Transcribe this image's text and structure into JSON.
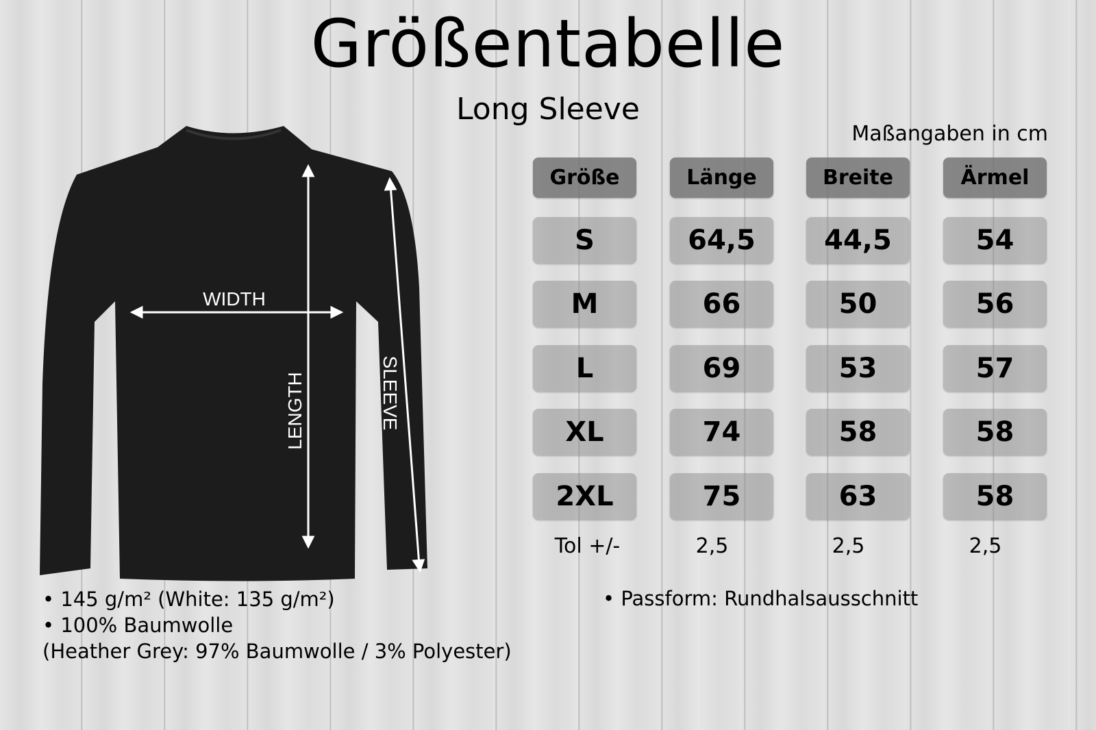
{
  "title": "Größentabelle",
  "subtitle": "Long Sleeve",
  "units_note": "Maßangaben in cm",
  "diagram_labels": {
    "width": "WIDTH",
    "length": "LENGTH",
    "sleeve": "SLEEVE"
  },
  "table": {
    "headers": [
      "Größe",
      "Länge",
      "Breite",
      "Ärmel"
    ],
    "rows": [
      [
        "S",
        "64,5",
        "44,5",
        "54"
      ],
      [
        "M",
        "66",
        "50",
        "56"
      ],
      [
        "L",
        "69",
        "53",
        "57"
      ],
      [
        "XL",
        "74",
        "58",
        "58"
      ],
      [
        "2XL",
        "75",
        "63",
        "58"
      ]
    ],
    "tolerance": [
      "Tol +/-",
      "2,5",
      "2,5",
      "2,5"
    ]
  },
  "notes_left": [
    "• 145 g/m² (White: 135 g/m²)",
    "• 100% Baumwolle",
    "(Heather Grey: 97% Baumwolle / 3% Polyester)"
  ],
  "note_right": "•  Passform: Rundhalsausschnitt",
  "colors": {
    "shirt": "#1c1c1c",
    "header_cell": "#6e6e6e",
    "cell": "#a8a8a8"
  }
}
